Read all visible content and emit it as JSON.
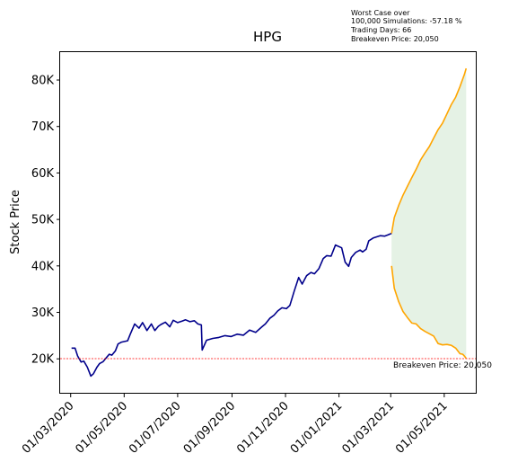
{
  "chart_data": {
    "type": "line",
    "title": "HPG",
    "xlabel": "",
    "ylabel": "Stock Price",
    "x_ticks": [
      "01/03/2020",
      "01/05/2020",
      "01/07/2020",
      "01/09/2020",
      "01/11/2020",
      "01/01/2021",
      "01/03/2021",
      "01/05/2021"
    ],
    "y_ticks": [
      {
        "value": 20000,
        "label": "20K"
      },
      {
        "value": 30000,
        "label": "30K"
      },
      {
        "value": 40000,
        "label": "40K"
      },
      {
        "value": 50000,
        "label": "50K"
      },
      {
        "value": 60000,
        "label": "60K"
      },
      {
        "value": 70000,
        "label": "70K"
      },
      {
        "value": 80000,
        "label": "80K"
      }
    ],
    "ylim": [
      12500,
      86000
    ],
    "xlim": [
      "2020-02-18",
      "2021-06-07"
    ],
    "grid": false,
    "annotation_lines": [
      "Worst Case over",
      "100,000 Simulations: -57.18 %",
      "Trading Days: 66",
      "Breakeven Price: 20,050"
    ],
    "breakeven": {
      "value": 20050,
      "label": "Breakeven Price: 20,050",
      "color": "#ff0000"
    },
    "history_color": "#00008b",
    "simulation_color": "#ffa500",
    "band_color": "#e5f2e5",
    "history": {
      "x": [
        "2020-03-02",
        "2020-03-06",
        "2020-03-09",
        "2020-03-13",
        "2020-03-16",
        "2020-03-20",
        "2020-03-24",
        "2020-03-27",
        "2020-03-31",
        "2020-04-03",
        "2020-04-07",
        "2020-04-10",
        "2020-04-14",
        "2020-04-17",
        "2020-04-21",
        "2020-04-24",
        "2020-04-28",
        "2020-05-05",
        "2020-05-08",
        "2020-05-13",
        "2020-05-18",
        "2020-05-22",
        "2020-05-27",
        "2020-06-01",
        "2020-06-05",
        "2020-06-09",
        "2020-06-12",
        "2020-06-17",
        "2020-06-22",
        "2020-06-26",
        "2020-07-01",
        "2020-07-06",
        "2020-07-10",
        "2020-07-15",
        "2020-07-20",
        "2020-07-24",
        "2020-07-28",
        "2020-07-29",
        "2020-08-03",
        "2020-08-10",
        "2020-08-17",
        "2020-08-24",
        "2020-08-31",
        "2020-09-07",
        "2020-09-14",
        "2020-09-21",
        "2020-09-28",
        "2020-10-05",
        "2020-10-09",
        "2020-10-14",
        "2020-10-19",
        "2020-10-23",
        "2020-10-28",
        "2020-11-02",
        "2020-11-06",
        "2020-11-11",
        "2020-11-16",
        "2020-11-20",
        "2020-11-25",
        "2020-11-30",
        "2020-12-04",
        "2020-12-09",
        "2020-12-14",
        "2020-12-18",
        "2020-12-23",
        "2020-12-28",
        "2021-01-04",
        "2021-01-08",
        "2021-01-12",
        "2021-01-15",
        "2021-01-20",
        "2021-01-25",
        "2021-01-28",
        "2021-02-01",
        "2021-02-04",
        "2021-02-09",
        "2021-02-17",
        "2021-02-22",
        "2021-02-26",
        "2021-03-02"
      ],
      "y": [
        22300,
        22300,
        20600,
        19300,
        19500,
        18200,
        16300,
        16800,
        18200,
        19000,
        19400,
        20100,
        21000,
        20800,
        21700,
        23200,
        23600,
        23900,
        25300,
        27500,
        26600,
        27800,
        26100,
        27500,
        26100,
        27000,
        27400,
        27900,
        26900,
        28300,
        27800,
        28100,
        28400,
        28000,
        28200,
        27500,
        27300,
        21900,
        24000,
        24400,
        24600,
        25000,
        24800,
        25300,
        25100,
        26200,
        25700,
        26900,
        27500,
        28700,
        29400,
        30300,
        31000,
        30800,
        31500,
        34600,
        37500,
        36100,
        37900,
        38600,
        38300,
        39400,
        41600,
        42200,
        42100,
        44500,
        43900,
        40800,
        39900,
        41800,
        42900,
        43400,
        43000,
        43600,
        45400,
        46000,
        46500,
        46400,
        46700,
        47000
      ]
    },
    "simulation_upper": {
      "x": [
        "2021-03-02",
        "2021-03-05",
        "2021-03-10",
        "2021-03-15",
        "2021-03-20",
        "2021-03-25",
        "2021-03-30",
        "2021-04-04",
        "2021-04-09",
        "2021-04-14",
        "2021-04-19",
        "2021-04-24",
        "2021-04-29",
        "2021-05-04",
        "2021-05-09",
        "2021-05-14",
        "2021-05-19",
        "2021-05-22",
        "2021-05-24",
        "2021-05-26"
      ],
      "y": [
        47000,
        50400,
        53000,
        55200,
        57100,
        59000,
        60800,
        62800,
        64300,
        65700,
        67500,
        69300,
        70700,
        72700,
        74700,
        76300,
        78600,
        80200,
        81200,
        82500
      ]
    },
    "simulation_lower": {
      "x": [
        "2021-03-02",
        "2021-03-05",
        "2021-03-10",
        "2021-03-15",
        "2021-03-20",
        "2021-03-25",
        "2021-03-30",
        "2021-04-04",
        "2021-04-09",
        "2021-04-14",
        "2021-04-19",
        "2021-04-24",
        "2021-04-29",
        "2021-05-04",
        "2021-05-09",
        "2021-05-14",
        "2021-05-19",
        "2021-05-22",
        "2021-05-24",
        "2021-05-26"
      ],
      "y": [
        40000,
        35200,
        32300,
        30200,
        28900,
        27700,
        27500,
        26500,
        25900,
        25400,
        24900,
        23300,
        23000,
        23100,
        22900,
        22300,
        21100,
        21000,
        20600,
        20100
      ]
    }
  }
}
